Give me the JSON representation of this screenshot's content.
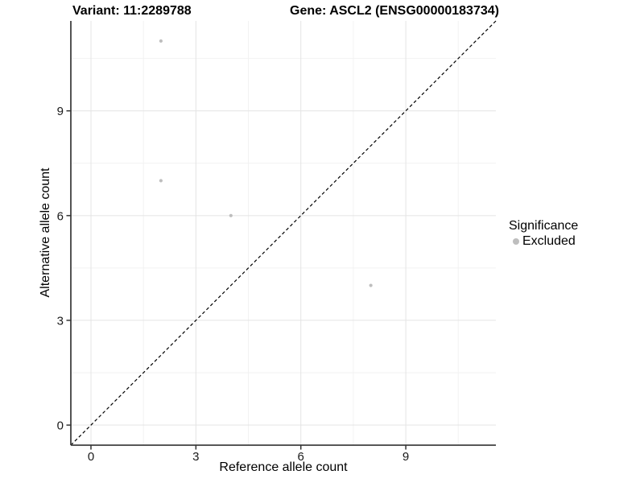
{
  "header": {
    "title_left": "Variant: 11:2289788",
    "title_right": "Gene: ASCL2 (ENSG00000183734)"
  },
  "chart_data": {
    "type": "scatter",
    "title": "Variant: 11:2289788   Gene: ASCL2 (ENSG00000183734)",
    "xlabel": "Reference allele count",
    "ylabel": "Alternative allele count",
    "xlim": [
      -0.575,
      11.575
    ],
    "ylim": [
      -0.575,
      11.575
    ],
    "xticks": [
      0,
      3,
      6,
      9
    ],
    "yticks": [
      0,
      3,
      6,
      9
    ],
    "minor_xticks": [
      1.5,
      4.5,
      7.5,
      10.5
    ],
    "minor_yticks": [
      1.5,
      4.5,
      7.5,
      10.5
    ],
    "grid": "major and minor gridlines, white background",
    "reference_line": {
      "type": "identity y=x",
      "style": "dashed",
      "color": "#000000"
    },
    "series": [
      {
        "name": "Excluded",
        "color": "#bebebe",
        "points": [
          [
            2,
            11
          ],
          [
            2,
            7
          ],
          [
            4,
            6
          ],
          [
            8,
            4
          ]
        ]
      }
    ],
    "legend": {
      "title": "Significance",
      "position": "right",
      "entries": [
        {
          "label": "Excluded",
          "color": "#bebebe"
        }
      ]
    },
    "colors": {
      "grid_major": "#e4e4e4",
      "grid_minor": "#f2f2f2",
      "axis_line": "#404040",
      "tick_mark": "#333333",
      "tick_label": "#1a1a1a"
    }
  }
}
